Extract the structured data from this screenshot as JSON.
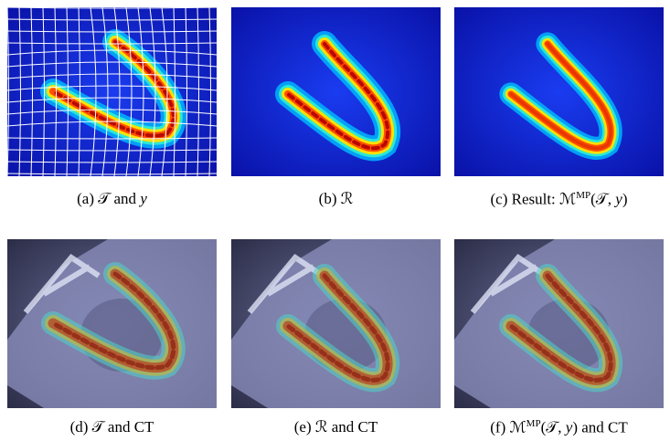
{
  "figure": {
    "panels": [
      {
        "caption": [
          {
            "text": "(a) 𝒯 and "
          },
          {
            "text": "y",
            "italic": true
          }
        ]
      },
      {
        "caption": [
          {
            "text": "(b) ℛ"
          }
        ]
      },
      {
        "caption": [
          {
            "text": "(c) Result: ℳ"
          },
          {
            "text": "MP",
            "sup": true
          },
          {
            "text": "(𝒯, "
          },
          {
            "text": "y",
            "italic": true
          },
          {
            "text": ")"
          }
        ]
      },
      {
        "caption": [
          {
            "text": "(d) 𝒯 and CT"
          }
        ]
      },
      {
        "caption": [
          {
            "text": "(e) ℛ and CT"
          }
        ]
      },
      {
        "caption": [
          {
            "text": "(f) ℳ"
          },
          {
            "text": "MP",
            "sup": true
          },
          {
            "text": "(𝒯, "
          },
          {
            "text": "y",
            "italic": true
          },
          {
            "text": ") and CT"
          }
        ]
      }
    ]
  }
}
